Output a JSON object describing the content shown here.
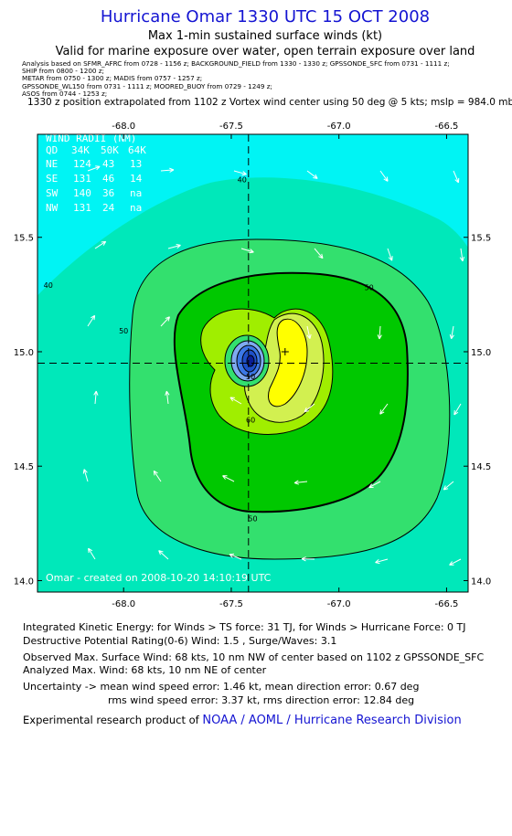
{
  "header": {
    "title": "Hurricane Omar 1330 UTC 15 OCT 2008",
    "subtitle1": "Max 1-min sustained surface winds (kt)",
    "subtitle2": "Valid for marine exposure over water, open terrain exposure over land",
    "analysis_lines": [
      "Analysis based on SFMR_AFRC from 0728 - 1156 z;  BACKGROUND_FIELD from 1330 - 1330 z;  GPSSONDE_SFC from 0731 - 1111 z;",
      "SHIP from 0800 - 1200 z;",
      "METAR from 0750 - 1300 z;  MADIS from 0757 - 1257 z;",
      "GPSSONDE_WL150 from 0731 - 1111 z;  MOORED_BUOY from 0729 - 1249 z;",
      "ASOS from 0744 - 1253 z;"
    ],
    "position_line": "1330 z position extrapolated from 1102 z Vortex wind center using 50 deg @ 5 kts; mslp = 984.0 mb"
  },
  "chart_data": {
    "type": "contour",
    "xlim": [
      -68.4,
      -66.4
    ],
    "ylim": [
      13.95,
      15.95
    ],
    "x_ticks": [
      -68.0,
      -67.5,
      -67.0,
      -66.5
    ],
    "x_tick_labels": [
      "-68.0",
      "-67.5",
      "-67.0",
      "-66.5"
    ],
    "y_ticks": [
      14.0,
      14.5,
      15.0,
      15.5
    ],
    "y_tick_labels": [
      "14.0",
      "14.5",
      "15.0",
      "15.5"
    ],
    "center": {
      "lon": -67.42,
      "lat": 14.95
    },
    "max_wind_marker": {
      "lon": -67.25,
      "lat": 15.0
    },
    "contour_labels": [
      {
        "text": "40",
        "lon": -67.45,
        "lat": 15.74
      },
      {
        "text": "40",
        "lon": -68.35,
        "lat": 15.28
      },
      {
        "text": "50",
        "lon": -66.86,
        "lat": 15.27
      },
      {
        "text": "50",
        "lon": -68.0,
        "lat": 15.08
      },
      {
        "text": "50",
        "lon": -67.4,
        "lat": 14.26
      },
      {
        "text": "60",
        "lon": -67.41,
        "lat": 14.69
      },
      {
        "text": "50",
        "lon": -67.41,
        "lat": 14.88
      }
    ],
    "wind_radii": {
      "title": "WIND RADII (NM)",
      "columns": [
        "QD",
        "34K",
        "50K",
        "64K"
      ],
      "rows": [
        [
          "NE",
          "124",
          "43",
          "13"
        ],
        [
          "SE",
          "131",
          "46",
          "14"
        ],
        [
          "SW",
          "140",
          "36",
          "na"
        ],
        [
          "NW",
          "131",
          "24",
          "na"
        ]
      ]
    },
    "credit": "Omar - created on 2008-10-20 14:10:19 UTC",
    "colors": {
      "lt40": "#00f4f4",
      "40_50": "#00e8ba",
      "50_60": "#33e06e",
      "60_64": "#00c800",
      "64_70": "#a0ee00",
      "70_80": "#d2f050",
      "80p": "#ffff00",
      "core": "#1e50c8"
    }
  },
  "footer": {
    "ike": "Integrated Kinetic Energy:  for Winds > TS force: 31 TJ,  for Winds > Hurricane Force: 0 TJ",
    "dpr": "Destructive Potential Rating(0-6)   Wind: 1.5 , Surge/Waves: 3.1",
    "obs": "Observed Max. Surface Wind: 68 kts, 10 nm NW of center based on 1102 z GPSSONDE_SFC",
    "analyzed": "Analyzed Max. Wind: 68 kts, 10 nm NE of center",
    "unc1": "Uncertainty -> mean wind speed error: 1.46 kt,   mean direction error: 0.67 deg",
    "unc2": "rms wind speed error: 3.37 kt,   rms direction error: 12.84 deg",
    "credit_prefix": "Experimental research product of",
    "credit_org": "NOAA / AOML / Hurricane Research Division"
  }
}
